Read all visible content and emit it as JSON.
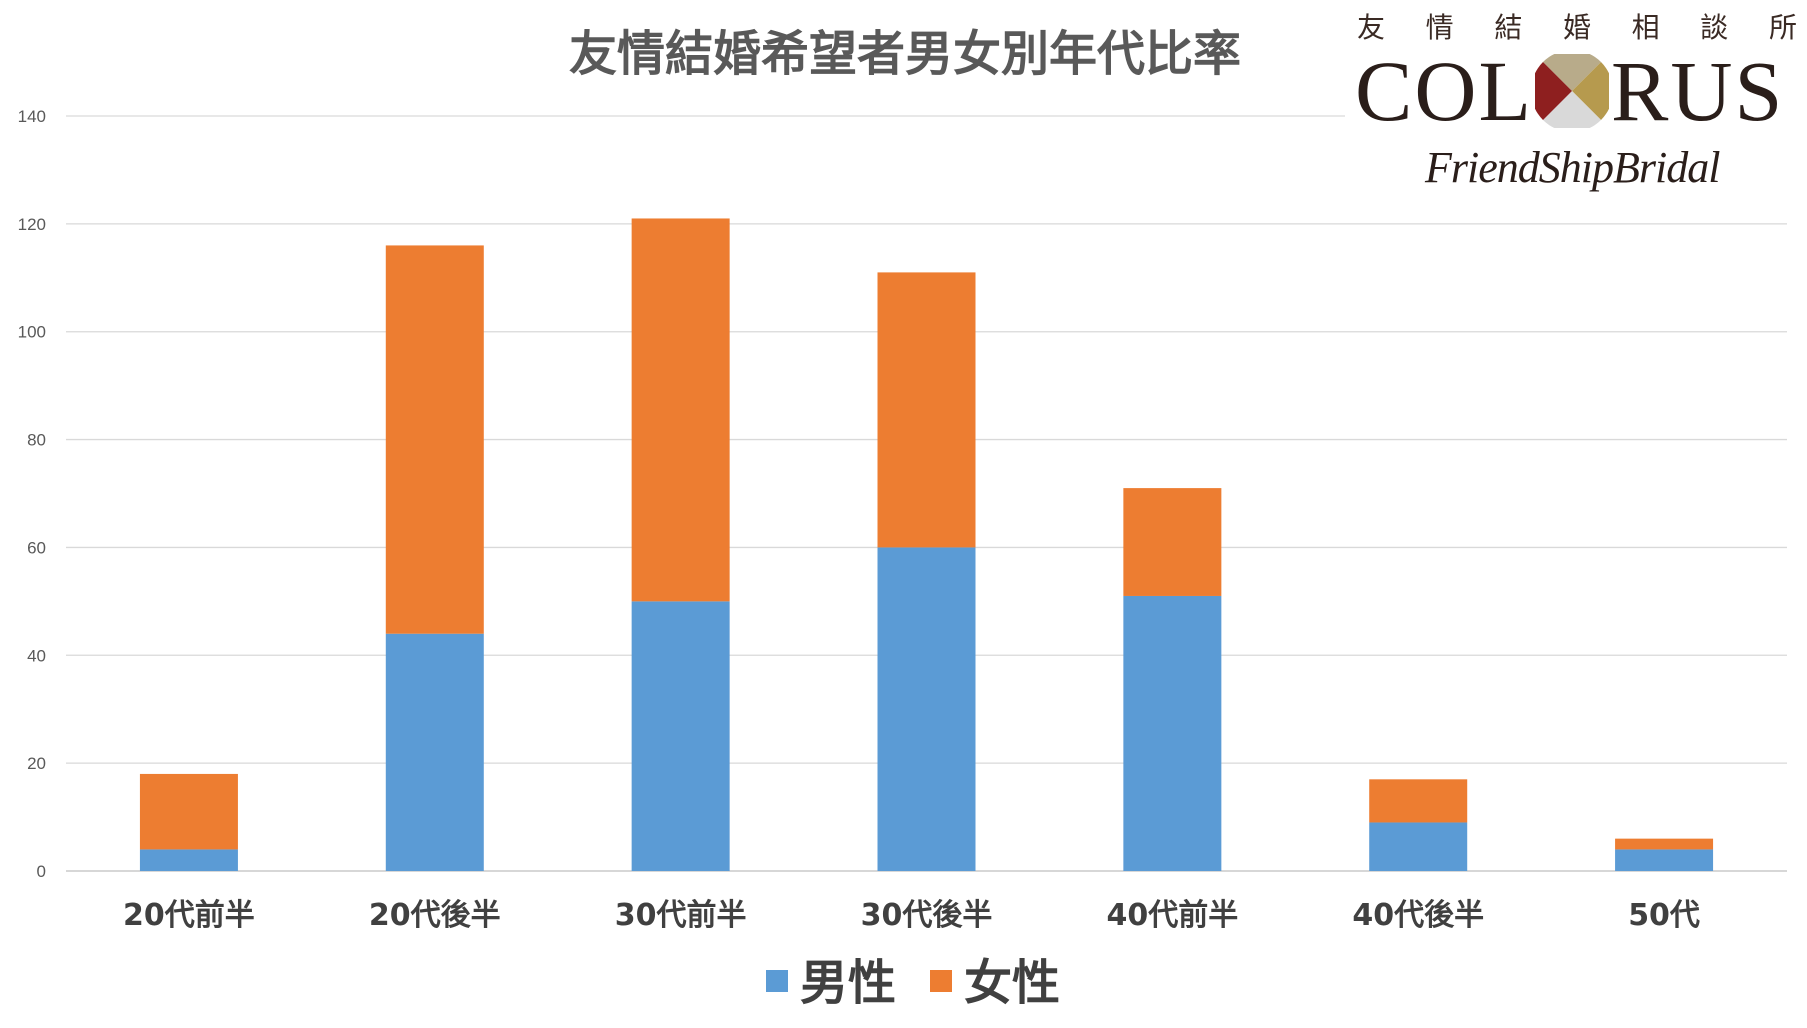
{
  "chart_data": {
    "type": "bar",
    "stacked": true,
    "title": "友情結婚希望者男女別年代比率",
    "xlabel": "",
    "ylabel": "",
    "categories": [
      "20代前半",
      "20代後半",
      "30代前半",
      "30代後半",
      "40代前半",
      "40代後半",
      "50代"
    ],
    "series": [
      {
        "name": "男性",
        "color": "#5B9BD5",
        "values": [
          4,
          44,
          50,
          60,
          51,
          9,
          4
        ]
      },
      {
        "name": "女性",
        "color": "#ED7D31",
        "values": [
          14,
          72,
          71,
          51,
          20,
          8,
          2
        ]
      }
    ],
    "ylim": [
      0,
      140
    ],
    "yticks": [
      0,
      20,
      40,
      60,
      80,
      100,
      120,
      140
    ],
    "grid": true,
    "legend": "bottom-center"
  },
  "logo": {
    "subtitle_chars": [
      "友",
      "情",
      "結",
      "婚",
      "相",
      "談",
      "所"
    ],
    "name_left": "COL",
    "name_right": "RUS",
    "tagline": "FriendShipBridal"
  }
}
